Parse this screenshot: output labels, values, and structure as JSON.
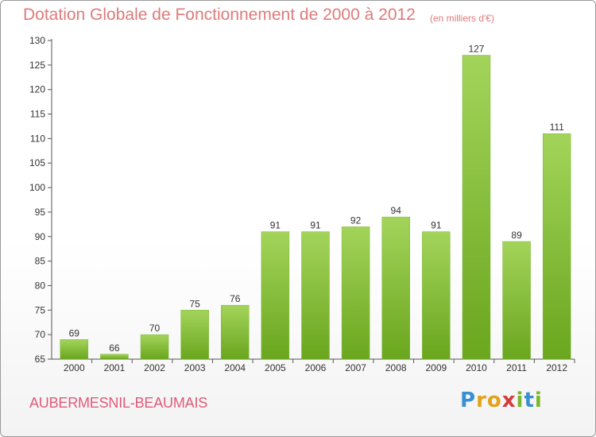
{
  "header": {
    "title": "Dotation Globale de Fonctionnement de 2000 à 2012",
    "unit": "(en milliers d'€)"
  },
  "footer": {
    "commune": "AUBERMESNIL-BEAUMAIS",
    "logo_letters": [
      "P",
      "r",
      "o",
      "x",
      "i",
      "t",
      "i"
    ],
    "logo_colors": [
      "#3a8fd0",
      "#e3a21a",
      "#e3a21a",
      "#d63a3a",
      "#7bb62b",
      "#3a8fd0",
      "#7bb62b"
    ]
  },
  "chart_data": {
    "type": "bar",
    "title": "Dotation Globale de Fonctionnement de 2000 à 2012",
    "subtitle": "(en milliers d'€)",
    "categories": [
      "2000",
      "2001",
      "2002",
      "2003",
      "2004",
      "2005",
      "2006",
      "2007",
      "2008",
      "2009",
      "2010",
      "2011",
      "2012"
    ],
    "values": [
      69,
      66,
      70,
      75,
      76,
      91,
      91,
      92,
      94,
      91,
      127,
      89,
      111
    ],
    "ylim": [
      65,
      130
    ],
    "yticks": [
      65,
      70,
      75,
      80,
      85,
      90,
      95,
      100,
      105,
      110,
      115,
      120,
      125,
      130
    ],
    "grid": false,
    "bar_color_top": "#a3d45a",
    "bar_color_bottom": "#6aa61e"
  }
}
